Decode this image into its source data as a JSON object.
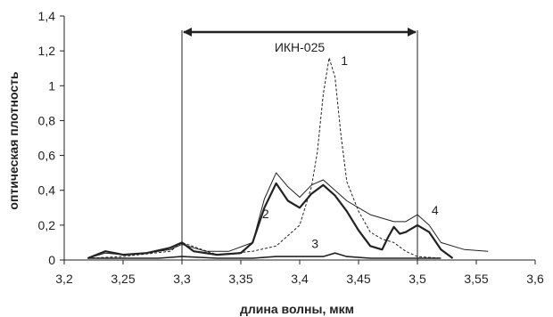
{
  "chart_data": {
    "type": "line",
    "xlabel": "длина волны, мкм",
    "ylabel": "оптическая плотность",
    "xlim": [
      3.2,
      3.6
    ],
    "ylim": [
      0,
      1.4
    ],
    "x_ticks": [
      "3,2",
      "3,25",
      "3,3",
      "3,35",
      "3,4",
      "3,45",
      "3,5",
      "3,55",
      "3,6"
    ],
    "y_ticks": [
      "0",
      "0,2",
      "0,4",
      "0,6",
      "0,8",
      "1",
      "1,2",
      "1,4"
    ],
    "grid": false,
    "legend": "none",
    "annotations": {
      "band_label": "ИКН-025",
      "band_range": [
        3.3,
        3.5
      ],
      "curve_labels": [
        "1",
        "2",
        "3",
        "4"
      ]
    },
    "series": [
      {
        "label": "1",
        "style": "dashed",
        "width": 1,
        "points": [
          [
            3.22,
            0.01
          ],
          [
            3.25,
            0.02
          ],
          [
            3.29,
            0.05
          ],
          [
            3.3,
            0.1
          ],
          [
            3.33,
            0.03
          ],
          [
            3.36,
            0.05
          ],
          [
            3.38,
            0.08
          ],
          [
            3.4,
            0.2
          ],
          [
            3.41,
            0.42
          ],
          [
            3.415,
            0.62
          ],
          [
            3.42,
            0.95
          ],
          [
            3.425,
            1.16
          ],
          [
            3.43,
            1.05
          ],
          [
            3.435,
            0.72
          ],
          [
            3.44,
            0.45
          ],
          [
            3.45,
            0.28
          ],
          [
            3.46,
            0.16
          ],
          [
            3.47,
            0.12
          ],
          [
            3.48,
            0.1
          ],
          [
            3.49,
            0.05
          ],
          [
            3.5,
            0.02
          ],
          [
            3.52,
            0.01
          ]
        ]
      },
      {
        "label": "2",
        "style": "solid",
        "width": 2.2,
        "points": [
          [
            3.22,
            0.01
          ],
          [
            3.235,
            0.05
          ],
          [
            3.25,
            0.03
          ],
          [
            3.27,
            0.04
          ],
          [
            3.29,
            0.07
          ],
          [
            3.3,
            0.1
          ],
          [
            3.31,
            0.05
          ],
          [
            3.33,
            0.03
          ],
          [
            3.35,
            0.04
          ],
          [
            3.36,
            0.1
          ],
          [
            3.37,
            0.3
          ],
          [
            3.38,
            0.44
          ],
          [
            3.39,
            0.34
          ],
          [
            3.4,
            0.3
          ],
          [
            3.41,
            0.38
          ],
          [
            3.42,
            0.43
          ],
          [
            3.43,
            0.37
          ],
          [
            3.44,
            0.28
          ],
          [
            3.45,
            0.17
          ],
          [
            3.46,
            0.08
          ],
          [
            3.47,
            0.06
          ],
          [
            3.475,
            0.13
          ],
          [
            3.48,
            0.19
          ],
          [
            3.485,
            0.15
          ],
          [
            3.49,
            0.16
          ],
          [
            3.5,
            0.2
          ],
          [
            3.51,
            0.16
          ],
          [
            3.52,
            0.06
          ],
          [
            3.53,
            0.01
          ]
        ]
      },
      {
        "label": "4",
        "style": "solid",
        "width": 1,
        "points": [
          [
            3.22,
            0.01
          ],
          [
            3.235,
            0.04
          ],
          [
            3.25,
            0.03
          ],
          [
            3.27,
            0.04
          ],
          [
            3.29,
            0.06
          ],
          [
            3.3,
            0.09
          ],
          [
            3.32,
            0.05
          ],
          [
            3.34,
            0.05
          ],
          [
            3.36,
            0.1
          ],
          [
            3.37,
            0.35
          ],
          [
            3.38,
            0.5
          ],
          [
            3.39,
            0.42
          ],
          [
            3.4,
            0.36
          ],
          [
            3.41,
            0.43
          ],
          [
            3.42,
            0.46
          ],
          [
            3.43,
            0.4
          ],
          [
            3.44,
            0.34
          ],
          [
            3.45,
            0.3
          ],
          [
            3.46,
            0.26
          ],
          [
            3.47,
            0.24
          ],
          [
            3.48,
            0.22
          ],
          [
            3.49,
            0.22
          ],
          [
            3.5,
            0.26
          ],
          [
            3.51,
            0.2
          ],
          [
            3.52,
            0.1
          ],
          [
            3.54,
            0.06
          ],
          [
            3.56,
            0.05
          ]
        ]
      },
      {
        "label": "3",
        "style": "solid",
        "width": 1.6,
        "points": [
          [
            3.22,
            0.01
          ],
          [
            3.25,
            0.01
          ],
          [
            3.28,
            0.01
          ],
          [
            3.3,
            0.02
          ],
          [
            3.33,
            0.01
          ],
          [
            3.36,
            0.01
          ],
          [
            3.38,
            0.02
          ],
          [
            3.4,
            0.02
          ],
          [
            3.42,
            0.02
          ],
          [
            3.43,
            0.04
          ],
          [
            3.44,
            0.02
          ],
          [
            3.46,
            0.01
          ],
          [
            3.48,
            0.01
          ],
          [
            3.5,
            0.01
          ],
          [
            3.52,
            0.01
          ]
        ]
      }
    ]
  }
}
